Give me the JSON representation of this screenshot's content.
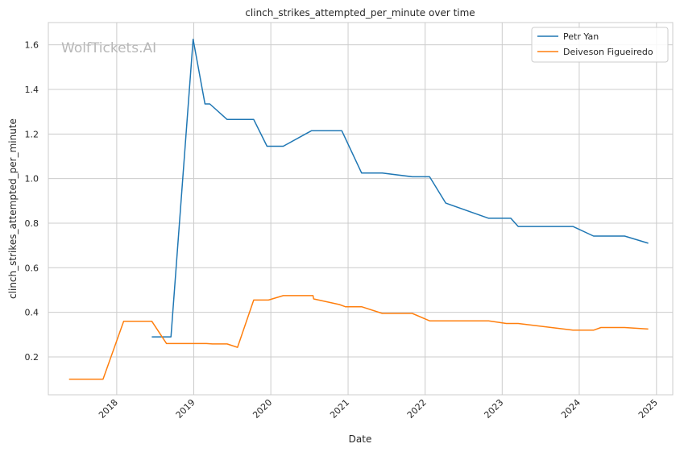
{
  "chart_data": {
    "type": "line",
    "title": "clinch_strikes_attempted_per_minute over time",
    "xlabel": "Date",
    "ylabel": "clinch_strikes_attempted_per_minute",
    "watermark": "WolfTickets.AI",
    "x_ticks": [
      "2018",
      "2019",
      "2020",
      "2021",
      "2022",
      "2023",
      "2024",
      "2025"
    ],
    "y_ticks": [
      "0.2",
      "0.4",
      "0.6",
      "0.8",
      "1.0",
      "1.2",
      "1.4",
      "1.6"
    ],
    "xlim": [
      "2017-02-11",
      "2025-03-19"
    ],
    "ylim": [
      0.03,
      1.7
    ],
    "grid": true,
    "legend_position": "top-right",
    "series": [
      {
        "name": "Petr Yan",
        "color": "#1f77b4",
        "points": [
          [
            "2018-06-16",
            0.29
          ],
          [
            "2018-09-15",
            0.29
          ],
          [
            "2018-12-29",
            1.625
          ],
          [
            "2019-02-23",
            1.335
          ],
          [
            "2019-03-18",
            1.335
          ],
          [
            "2019-06-08",
            1.265
          ],
          [
            "2019-10-12",
            1.265
          ],
          [
            "2019-12-14",
            1.145
          ],
          [
            "2020-02-29",
            1.145
          ],
          [
            "2020-07-12",
            1.215
          ],
          [
            "2020-12-02",
            1.215
          ],
          [
            "2021-03-06",
            1.025
          ],
          [
            "2021-06-12",
            1.025
          ],
          [
            "2021-11-01",
            1.008
          ],
          [
            "2022-01-22",
            1.008
          ],
          [
            "2022-04-09",
            0.89
          ],
          [
            "2022-10-29",
            0.822
          ],
          [
            "2023-02-11",
            0.822
          ],
          [
            "2023-03-18",
            0.785
          ],
          [
            "2023-12-02",
            0.785
          ],
          [
            "2024-03-09",
            0.742
          ],
          [
            "2024-08-03",
            0.742
          ],
          [
            "2024-11-23",
            0.71
          ]
        ]
      },
      {
        "name": "Deiveson Figueiredo",
        "color": "#ff7f0e",
        "points": [
          [
            "2017-05-20",
            0.1
          ],
          [
            "2017-10-28",
            0.1
          ],
          [
            "2018-02-03",
            0.36
          ],
          [
            "2018-06-16",
            0.36
          ],
          [
            "2018-08-25",
            0.26
          ],
          [
            "2019-03-02",
            0.26
          ],
          [
            "2019-03-30",
            0.258
          ],
          [
            "2019-06-08",
            0.258
          ],
          [
            "2019-07-27",
            0.243
          ],
          [
            "2019-10-12",
            0.455
          ],
          [
            "2019-12-21",
            0.455
          ],
          [
            "2020-02-29",
            0.475
          ],
          [
            "2020-07-19",
            0.475
          ],
          [
            "2020-07-22",
            0.46
          ],
          [
            "2020-11-21",
            0.435
          ],
          [
            "2020-12-19",
            0.425
          ],
          [
            "2021-03-06",
            0.425
          ],
          [
            "2021-06-12",
            0.395
          ],
          [
            "2021-11-01",
            0.395
          ],
          [
            "2022-01-22",
            0.362
          ],
          [
            "2022-10-29",
            0.362
          ],
          [
            "2023-01-21",
            0.35
          ],
          [
            "2023-03-18",
            0.35
          ],
          [
            "2023-12-02",
            0.32
          ],
          [
            "2024-03-09",
            0.32
          ],
          [
            "2024-04-13",
            0.332
          ],
          [
            "2024-08-03",
            0.332
          ],
          [
            "2024-11-23",
            0.325
          ]
        ]
      }
    ]
  }
}
